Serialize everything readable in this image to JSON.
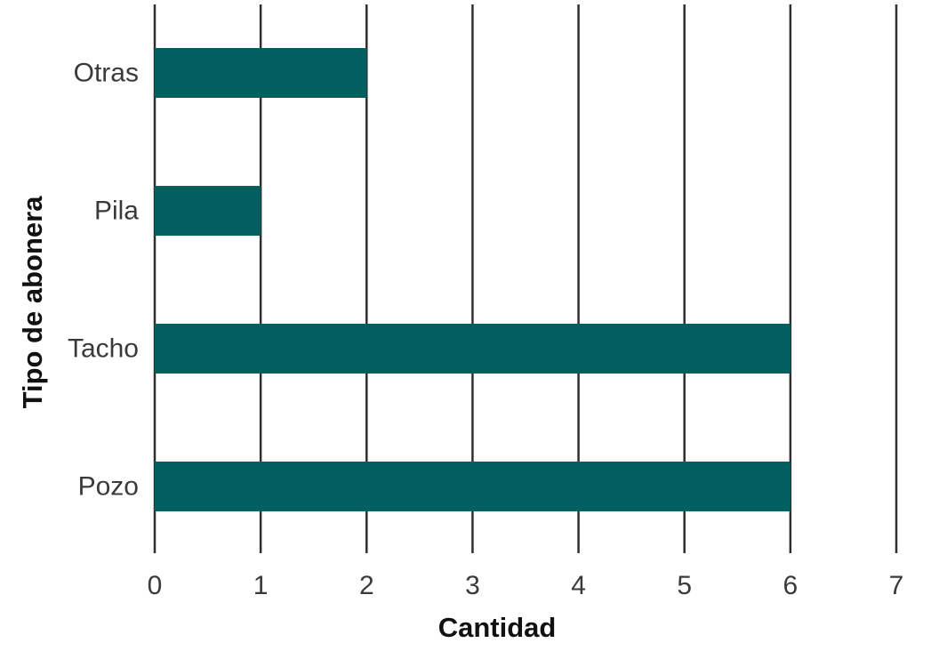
{
  "chart_data": {
    "type": "bar",
    "orientation": "horizontal",
    "title": "",
    "xlabel": "Cantidad",
    "ylabel": "Tipo de abonera",
    "categories": [
      "Otras",
      "Pila",
      "Tacho",
      "Pozo"
    ],
    "values": [
      2,
      1,
      6,
      6
    ],
    "xlim": [
      0,
      7
    ],
    "xticks": [
      0,
      1,
      2,
      3,
      4,
      5,
      6,
      7
    ],
    "grid": "vertical",
    "legend": "none",
    "bar_color": "#035E60",
    "grid_color": "#2f2f2f"
  }
}
